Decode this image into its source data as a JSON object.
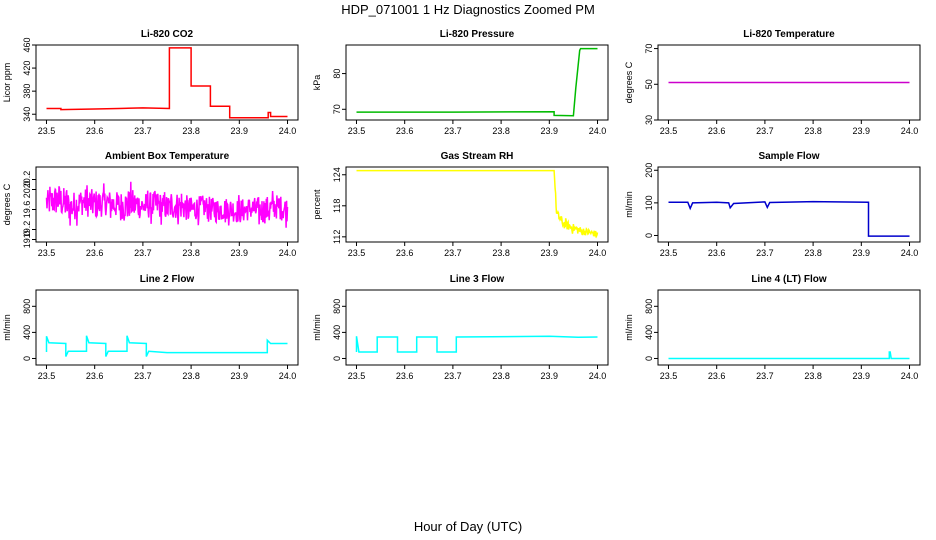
{
  "figure": {
    "title": "HDP_071001  1 Hz Diagnostics Zoomed PM",
    "xlabel": "Hour of Day (UTC)"
  },
  "chart_data": [
    {
      "type": "line",
      "title": "Li-820 CO2",
      "ylabel": "Licor ppm",
      "color": "#ff0000",
      "xlim": [
        23.5,
        24.0
      ],
      "ylim": [
        330,
        460
      ],
      "xticks": [
        "23.5",
        "23.6",
        "23.7",
        "23.8",
        "23.9",
        "24.0"
      ],
      "yticks": [
        "340",
        "380",
        "420",
        "460"
      ],
      "x": [
        23.5,
        23.53,
        23.53,
        23.6,
        23.65,
        23.7,
        23.755,
        23.755,
        23.8,
        23.8,
        23.84,
        23.84,
        23.88,
        23.88,
        23.96,
        23.96,
        23.965,
        23.965,
        24.0
      ],
      "y": [
        350,
        350,
        348,
        349,
        350,
        351,
        350,
        455,
        455,
        389,
        389,
        354,
        354,
        334,
        334,
        343,
        343,
        336,
        336
      ]
    },
    {
      "type": "line",
      "title": "Li-820 Pressure",
      "ylabel": "kPa",
      "color": "#00bb00",
      "xlim": [
        23.5,
        24.0
      ],
      "ylim": [
        67,
        88
      ],
      "xticks": [
        "23.5",
        "23.6",
        "23.7",
        "23.8",
        "23.9",
        "24.0"
      ],
      "yticks": [
        "70",
        "80"
      ],
      "x": [
        23.5,
        23.7,
        23.91,
        23.91,
        23.95,
        23.955,
        23.963,
        23.965,
        24.0
      ],
      "y": [
        69.2,
        69.2,
        69.3,
        68.3,
        68.2,
        76,
        86.5,
        87.0,
        87.0
      ]
    },
    {
      "type": "line",
      "title": "Li-820 Temperature",
      "ylabel": "degrees C",
      "color": "#cc00cc",
      "xlim": [
        23.5,
        24.0
      ],
      "ylim": [
        30,
        72
      ],
      "xticks": [
        "23.5",
        "23.6",
        "23.7",
        "23.8",
        "23.9",
        "24.0"
      ],
      "yticks": [
        "30",
        "50",
        "70"
      ],
      "x": [
        23.5,
        24.0
      ],
      "y": [
        51.0,
        51.0
      ]
    },
    {
      "type": "line",
      "title": "Ambient Box Temperature",
      "ylabel": "degrees C",
      "color": "#ff00ff",
      "xlim": [
        23.5,
        24.0
      ],
      "ylim": [
        18.95,
        20.45
      ],
      "xticks": [
        "23.5",
        "23.6",
        "23.7",
        "23.8",
        "23.9",
        "24.0"
      ],
      "yticks": [
        "19.0",
        "19.2",
        "19.6",
        "20.0",
        "20.2"
      ],
      "x": [
        23.5,
        23.525,
        23.55,
        23.575,
        23.6,
        23.625,
        23.65,
        23.675,
        23.7,
        23.725,
        23.75,
        23.775,
        23.8,
        23.825,
        23.85,
        23.875,
        23.9,
        23.925,
        23.95,
        23.975,
        24.0
      ],
      "y": [
        19.72,
        19.8,
        19.64,
        19.76,
        19.7,
        19.74,
        19.68,
        19.72,
        19.66,
        19.7,
        19.64,
        19.68,
        19.6,
        19.66,
        19.58,
        19.62,
        19.56,
        19.62,
        19.58,
        19.66,
        19.6
      ],
      "y_spread": [
        0.5,
        0.65,
        0.6,
        0.55,
        0.6,
        0.5,
        0.55,
        0.6,
        0.5,
        0.55,
        0.5,
        0.55,
        0.5,
        0.45,
        0.5,
        0.45,
        0.5,
        0.45,
        0.55,
        0.5,
        0.5
      ]
    },
    {
      "type": "line",
      "title": "Gas Stream RH",
      "ylabel": "percent",
      "color": "#ffff00",
      "xlim": [
        23.5,
        24.0
      ],
      "ylim": [
        111,
        125.5
      ],
      "xticks": [
        "23.5",
        "23.6",
        "23.7",
        "23.8",
        "23.9",
        "24.0"
      ],
      "yticks": [
        "112",
        "118",
        "124"
      ],
      "x": [
        23.5,
        23.7,
        23.91,
        23.915,
        23.93,
        23.96,
        24.0
      ],
      "y": [
        124.8,
        124.8,
        124.8,
        116.5,
        114.5,
        113.3,
        112.5
      ],
      "y_spread": [
        0,
        0,
        0,
        1.6,
        1.8,
        1.6,
        1.2
      ]
    },
    {
      "type": "line",
      "title": "Sample Flow",
      "ylabel": "ml/min",
      "color": "#0000cc",
      "xlim": [
        23.5,
        24.0
      ],
      "ylim": [
        -20,
        210
      ],
      "xticks": [
        "23.5",
        "23.6",
        "23.7",
        "23.8",
        "23.9",
        "24.0"
      ],
      "yticks": [
        "0",
        "100",
        "200"
      ],
      "x": [
        23.5,
        23.54,
        23.545,
        23.55,
        23.6,
        23.625,
        23.628,
        23.635,
        23.7,
        23.705,
        23.71,
        23.8,
        23.915,
        23.915,
        23.92,
        24.0
      ],
      "y": [
        102,
        102,
        83,
        100,
        102,
        100,
        85,
        98,
        103,
        86,
        101,
        104,
        102,
        -2,
        -2,
        -2
      ]
    },
    {
      "type": "line",
      "title": "Line 2 Flow",
      "ylabel": "ml/min",
      "color": "#00ffff",
      "xlim": [
        23.5,
        24.0
      ],
      "ylim": [
        -100,
        1050
      ],
      "xticks": [
        "23.5",
        "23.6",
        "23.7",
        "23.8",
        "23.9",
        "24.0"
      ],
      "yticks": [
        "0",
        "400",
        "800"
      ],
      "x": [
        23.5,
        23.5,
        23.505,
        23.54,
        23.54,
        23.545,
        23.583,
        23.583,
        23.588,
        23.623,
        23.623,
        23.628,
        23.667,
        23.667,
        23.672,
        23.707,
        23.707,
        23.712,
        23.75,
        23.8,
        23.958,
        23.958,
        23.965,
        24.0
      ],
      "y": [
        100,
        340,
        240,
        230,
        30,
        110,
        110,
        350,
        240,
        230,
        30,
        110,
        110,
        350,
        240,
        230,
        30,
        110,
        90,
        90,
        90,
        280,
        230,
        230
      ]
    },
    {
      "type": "line",
      "title": "Line 3 Flow",
      "ylabel": "ml/min",
      "color": "#00ffff",
      "xlim": [
        23.5,
        24.0
      ],
      "ylim": [
        -100,
        1050
      ],
      "xticks": [
        "23.5",
        "23.6",
        "23.7",
        "23.8",
        "23.9",
        "24.0"
      ],
      "yticks": [
        "0",
        "400",
        "800"
      ],
      "x": [
        23.5,
        23.5,
        23.505,
        23.543,
        23.543,
        23.585,
        23.585,
        23.625,
        23.625,
        23.667,
        23.667,
        23.707,
        23.707,
        23.9,
        23.96,
        24.0
      ],
      "y": [
        100,
        340,
        100,
        100,
        330,
        330,
        100,
        100,
        330,
        330,
        100,
        100,
        330,
        340,
        325,
        330
      ]
    },
    {
      "type": "line",
      "title": "Line 4 (LT) Flow",
      "ylabel": "ml/min",
      "color": "#00ffff",
      "xlim": [
        23.5,
        24.0
      ],
      "ylim": [
        -100,
        1050
      ],
      "xticks": [
        "23.5",
        "23.6",
        "23.7",
        "23.8",
        "23.9",
        "24.0"
      ],
      "yticks": [
        "0",
        "400",
        "800"
      ],
      "x": [
        23.5,
        23.958,
        23.958,
        23.96,
        23.962,
        24.0
      ],
      "y": [
        0,
        0,
        100,
        100,
        0,
        0
      ]
    }
  ]
}
